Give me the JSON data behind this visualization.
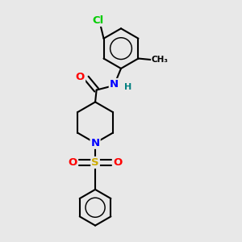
{
  "bg_color": "#e8e8e8",
  "bond_color": "#000000",
  "bond_width": 1.5,
  "atom_colors": {
    "Cl": "#00cc00",
    "N": "#0000ff",
    "O": "#ff0000",
    "S": "#ccaa00",
    "H": "#008080",
    "C": "#000000"
  },
  "font_size": 9.5,
  "font_size_h": 8.5
}
